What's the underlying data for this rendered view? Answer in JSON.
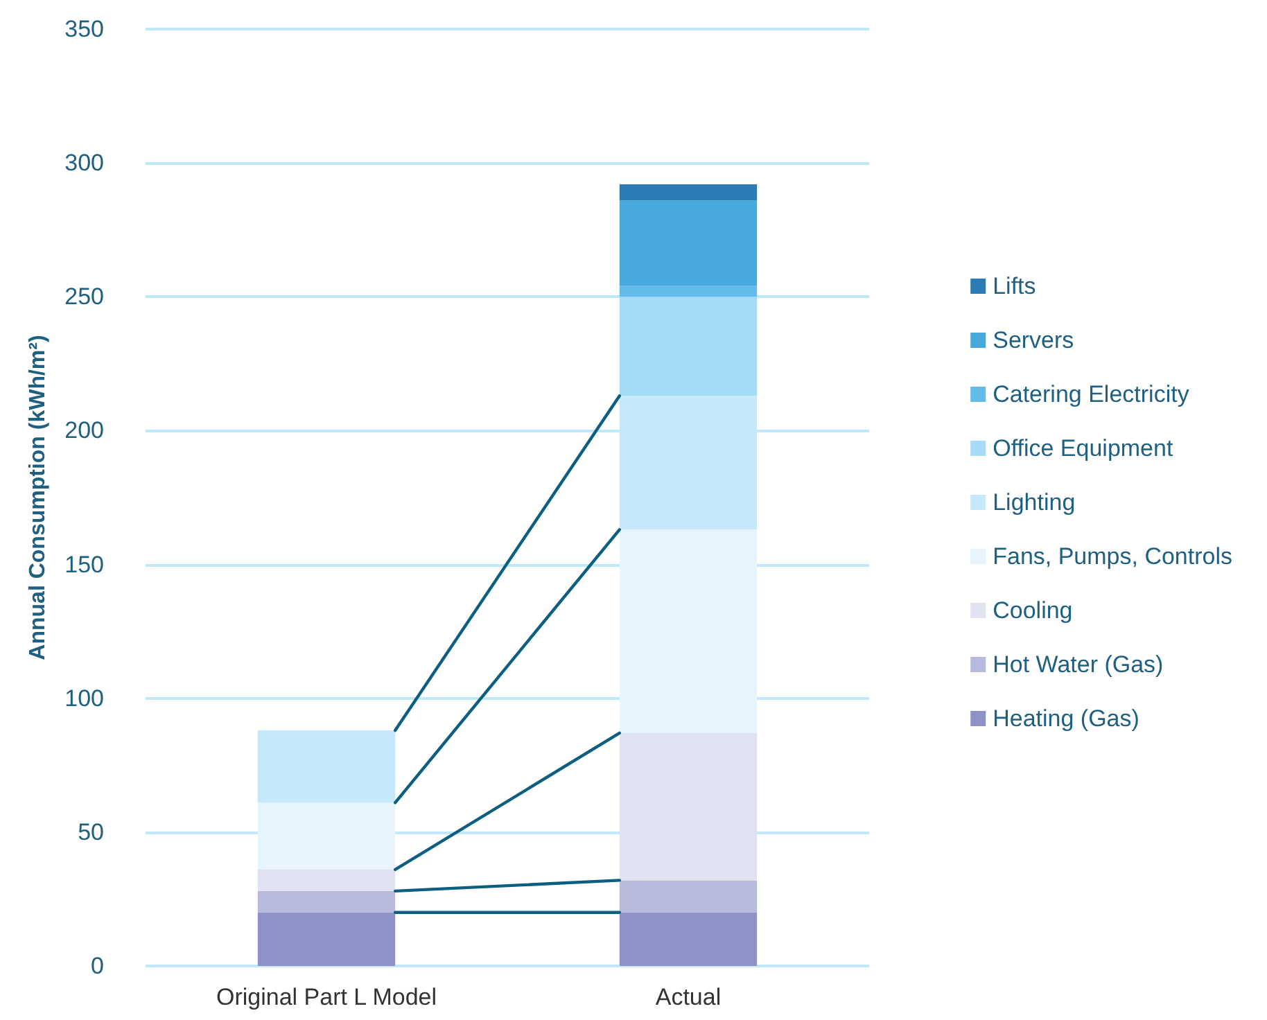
{
  "chart_data": {
    "type": "bar",
    "stacked": true,
    "ylabel": "Annual Consumption (kWh/m²)",
    "categories": [
      "Original Part L Model",
      "Actual"
    ],
    "series": [
      {
        "name": "Heating (Gas)",
        "color": "#8e92c6",
        "values": [
          20,
          20
        ]
      },
      {
        "name": "Hot Water (Gas)",
        "color": "#b7b9dd",
        "values": [
          8,
          12
        ]
      },
      {
        "name": "Cooling",
        "color": "#e0e1f1",
        "values": [
          8,
          55
        ]
      },
      {
        "name": "Fans, Pumps, Controls",
        "color": "#e6f5fd",
        "values": [
          25,
          76
        ]
      },
      {
        "name": "Lighting",
        "color": "#c5e8fb",
        "values": [
          27,
          50
        ]
      },
      {
        "name": "Office Equipment",
        "color": "#a6dbf7",
        "values": [
          null,
          37
        ]
      },
      {
        "name": "Catering Electricity",
        "color": "#63bbe9",
        "values": [
          null,
          4
        ]
      },
      {
        "name": "Servers",
        "color": "#47a8dc",
        "values": [
          null,
          32
        ]
      },
      {
        "name": "Lifts",
        "color": "#2b7cb4",
        "values": [
          null,
          6
        ]
      }
    ],
    "ylim": [
      0,
      350
    ],
    "yticks": [
      0,
      50,
      100,
      150,
      200,
      250,
      300,
      350
    ],
    "grid": "y",
    "legend": "right"
  }
}
